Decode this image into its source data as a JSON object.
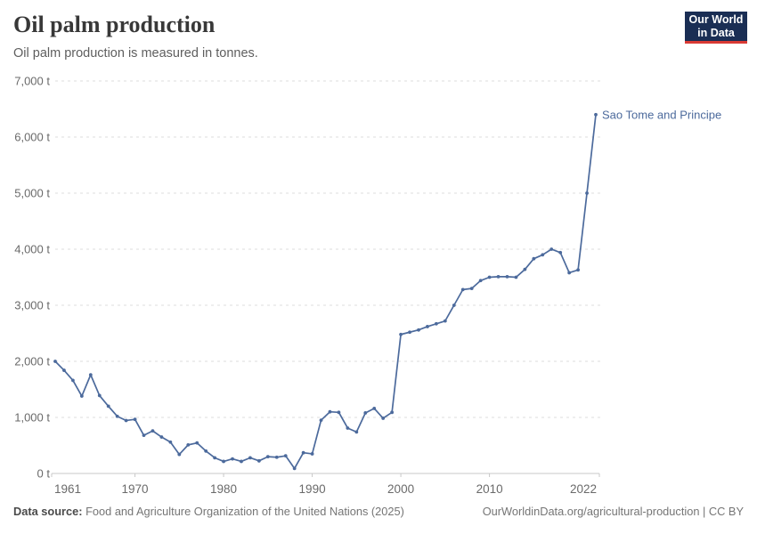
{
  "header": {
    "title": "Oil palm production",
    "subtitle": "Oil palm production is measured in tonnes.",
    "logo": {
      "line1": "Our World",
      "line2": "in Data",
      "bg_color": "#1a2e54",
      "accent_color": "#d93a34"
    }
  },
  "chart_data": {
    "type": "line",
    "title": "Oil palm production",
    "unit": "t",
    "xlim": [
      1961,
      2022
    ],
    "ylim": [
      0,
      7000
    ],
    "x_ticks": [
      1961,
      1970,
      1980,
      1990,
      2000,
      2010,
      2022
    ],
    "y_ticks": [
      0,
      1000,
      2000,
      3000,
      4000,
      5000,
      6000,
      7000
    ],
    "y_tick_suffix": " t",
    "grid": "dashed-horizontal",
    "legend_position": "end-of-line-label",
    "series": [
      {
        "name": "Sao Tome and Principe",
        "color": "#4C6A9C",
        "x": [
          1961,
          1962,
          1963,
          1964,
          1965,
          1966,
          1967,
          1968,
          1969,
          1970,
          1971,
          1972,
          1973,
          1974,
          1975,
          1976,
          1977,
          1978,
          1979,
          1980,
          1981,
          1982,
          1983,
          1984,
          1985,
          1986,
          1987,
          1988,
          1989,
          1990,
          1991,
          1992,
          1993,
          1994,
          1995,
          1996,
          1997,
          1998,
          1999,
          2000,
          2001,
          2002,
          2003,
          2004,
          2005,
          2006,
          2007,
          2008,
          2009,
          2010,
          2011,
          2012,
          2013,
          2014,
          2015,
          2016,
          2017,
          2018,
          2019,
          2020,
          2021,
          2022
        ],
        "values": [
          2000,
          1840,
          1660,
          1380,
          1760,
          1390,
          1200,
          1020,
          945,
          965,
          680,
          760,
          650,
          560,
          340,
          510,
          545,
          400,
          280,
          215,
          260,
          215,
          280,
          225,
          300,
          290,
          315,
          90,
          370,
          350,
          950,
          1100,
          1090,
          810,
          740,
          1080,
          1160,
          985,
          1090,
          2480,
          2520,
          2560,
          2620,
          2670,
          2720,
          3000,
          3280,
          3300,
          3440,
          3500,
          3510,
          3510,
          3500,
          3640,
          3830,
          3900,
          4000,
          3940,
          3580,
          3630,
          5000,
          6400
        ]
      }
    ],
    "colors": {
      "gridline": "#dedede",
      "axis": "#c8c8c8",
      "tick_label": "#6a6a6a"
    }
  },
  "footer": {
    "source_label": "Data source:",
    "source_text": "Food and Agriculture Organization of the United Nations (2025)",
    "url_text": "OurWorldinData.org/agricultural-production | CC BY"
  }
}
